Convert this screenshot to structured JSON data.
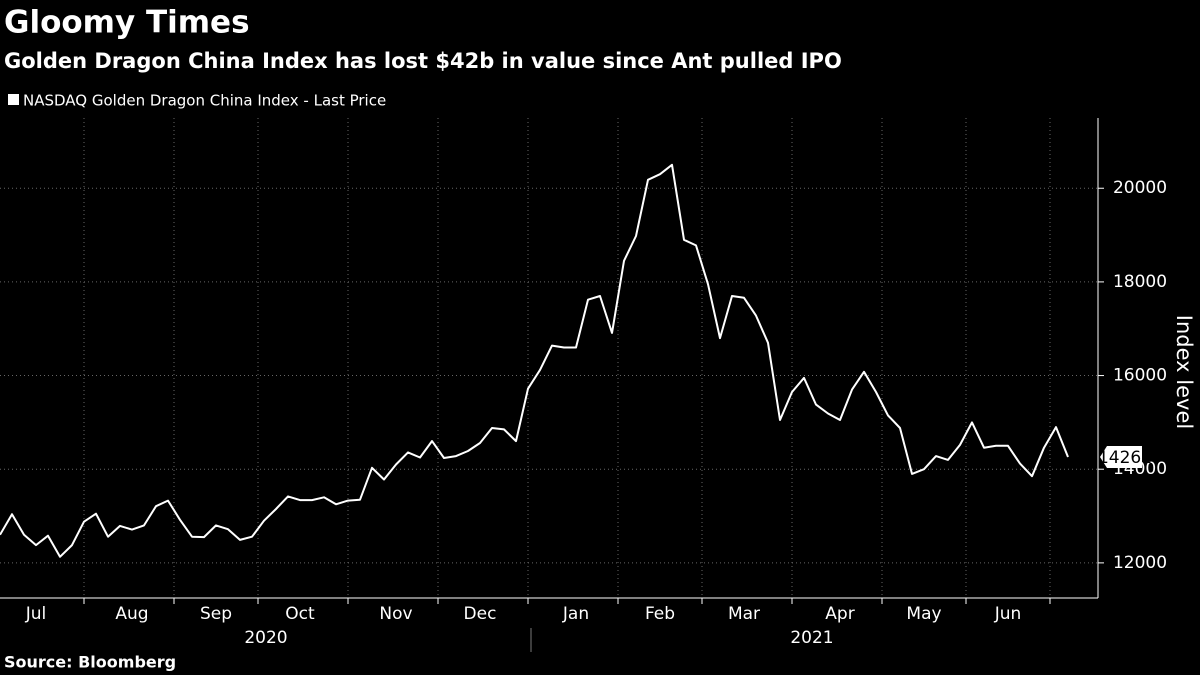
{
  "chart_data": {
    "type": "line",
    "title": "Gloomy Times",
    "subtitle": "Golden Dragon China Index has lost $42b in value since Ant pulled IPO",
    "source": "Source: Bloomberg",
    "y_axis_label": "Index level",
    "year_labels": [
      "2020",
      "2021"
    ],
    "categories": [
      null,
      null,
      null,
      "Jul",
      null,
      null,
      null,
      null,
      null,
      null,
      null,
      "Aug",
      null,
      null,
      null,
      null,
      null,
      null,
      "Sep",
      null,
      null,
      null,
      null,
      null,
      null,
      "Oct",
      null,
      null,
      null,
      null,
      null,
      null,
      null,
      "Nov",
      null,
      null,
      null,
      null,
      null,
      null,
      "Dec",
      null,
      null,
      null,
      null,
      null,
      null,
      null,
      "Jan",
      null,
      null,
      null,
      null,
      null,
      null,
      "Feb",
      null,
      null,
      null,
      null,
      null,
      null,
      "Mar",
      null,
      null,
      null,
      null,
      null,
      null,
      null,
      "Apr",
      null,
      null,
      null,
      null,
      null,
      null,
      "May",
      null,
      null,
      null,
      null,
      null,
      null,
      "Jun",
      null,
      null,
      null,
      null,
      null
    ],
    "series": [
      {
        "name": "NASDAQ Golden Dragon China Index - Last Price",
        "color": "#ffffff",
        "values": [
          12600,
          13040,
          12600,
          12380,
          12580,
          12130,
          12380,
          12880,
          13050,
          12560,
          12790,
          12710,
          12800,
          13210,
          13330,
          12920,
          12560,
          12550,
          12800,
          12720,
          12490,
          12560,
          12900,
          13150,
          13420,
          13340,
          13340,
          13400,
          13250,
          13330,
          13350,
          14030,
          13780,
          14100,
          14360,
          14250,
          14600,
          14240,
          14280,
          14390,
          14560,
          14880,
          14850,
          14600,
          15720,
          16120,
          16640,
          16600,
          16600,
          17620,
          17700,
          16910,
          18450,
          18980,
          20180,
          20300,
          20500,
          18900,
          18780,
          17950,
          16800,
          17700,
          17660,
          17280,
          16700,
          15050,
          15650,
          15950,
          15380,
          15190,
          15050,
          15700,
          16080,
          15650,
          15150,
          14880,
          13900,
          14000,
          14280,
          14200,
          14520,
          15000,
          14460,
          14500,
          14500,
          14120,
          13850,
          14460,
          14900,
          14261
        ]
      }
    ],
    "ylim": [
      11250,
      21500
    ],
    "yticks": [
      12000,
      14000,
      16000,
      18000,
      20000
    ],
    "grid": true,
    "last_value_label": true
  }
}
